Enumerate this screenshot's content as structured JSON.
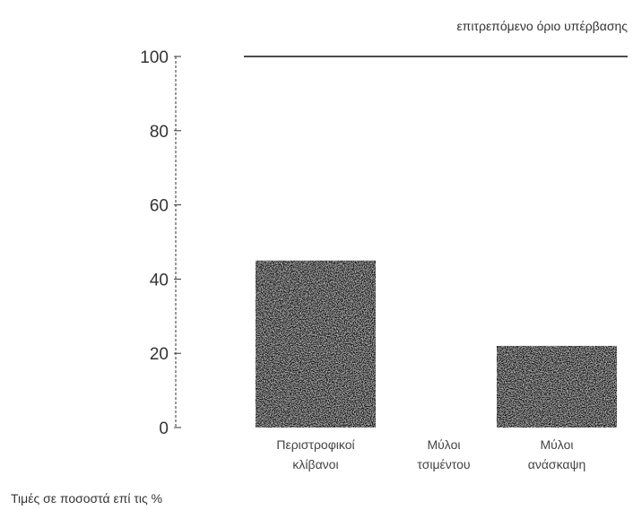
{
  "chart_data": {
    "type": "bar",
    "title": "",
    "xlabel": "",
    "ylabel": "",
    "ylim": [
      0,
      100
    ],
    "yticks": [
      "0",
      "20",
      "40",
      "60",
      "80",
      "100"
    ],
    "categories": [
      [
        "Περιστροφικοί",
        "κλίβανοι"
      ],
      [
        "Μύλοι",
        "τσιμέντου"
      ],
      [
        "Μύλοι",
        "ανάσκαψη"
      ]
    ],
    "values": [
      45,
      0,
      22
    ],
    "reference_line": {
      "value": 100,
      "label": "επιτρεπόμενο όριο υπέρβασης"
    },
    "bar_color": "#111111",
    "grid": false
  },
  "footnote": "Τιμές σε ποσοστά επί τις %"
}
